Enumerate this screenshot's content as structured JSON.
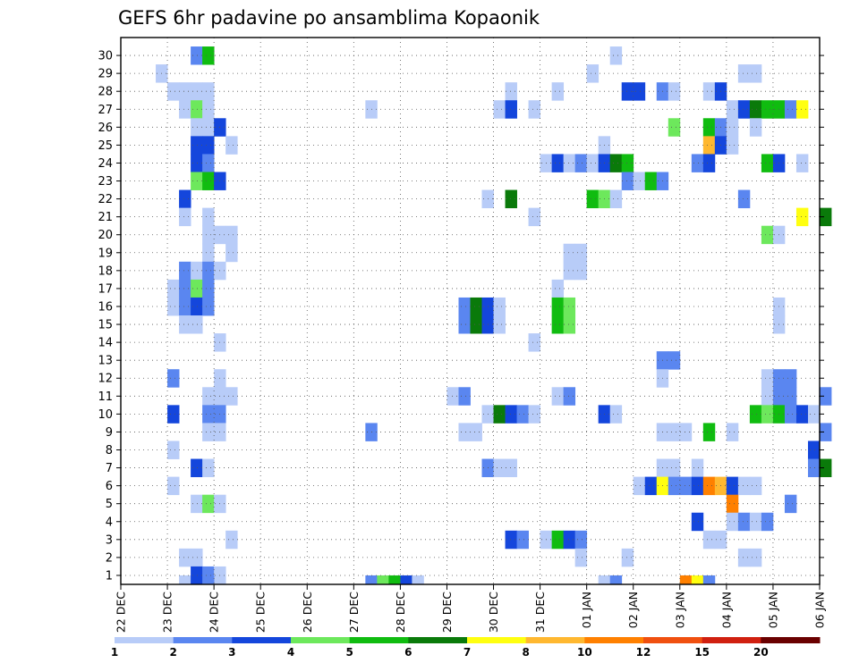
{
  "chart_data": {
    "type": "heatmap",
    "title": "GEFS 6hr padavine po ansamblima Kopaonik",
    "y_ticks": [
      "1",
      "2",
      "3",
      "4",
      "5",
      "6",
      "7",
      "8",
      "9",
      "10",
      "11",
      "12",
      "13",
      "14",
      "15",
      "16",
      "17",
      "18",
      "19",
      "20",
      "21",
      "22",
      "23",
      "24",
      "25",
      "26",
      "27",
      "28",
      "29",
      "30"
    ],
    "x_ticks": [
      "22 DEC",
      "23 DEC",
      "24 DEC",
      "25 DEC",
      "26 DEC",
      "27 DEC",
      "28 DEC",
      "29 DEC",
      "30 DEC",
      "31 DEC",
      "01 JAN",
      "02 JAN",
      "03 JAN",
      "04 JAN",
      "05 JAN",
      "06 JAN"
    ],
    "x_steps_per_day": 4,
    "legend": {
      "labels": [
        "1",
        "2",
        "3",
        "4",
        "5",
        "6",
        "7",
        "8",
        "10",
        "12",
        "15",
        "20"
      ],
      "colors": [
        "#b8ccf8",
        "#5a86f0",
        "#1446dc",
        "#6de85c",
        "#10bc10",
        "#0a7a0a",
        "#ffff10",
        "#ffb830",
        "#ff8000",
        "#f05010",
        "#d02010",
        "#6a0000"
      ]
    },
    "cells": [
      [
        30,
        6,
        1
      ],
      [
        30,
        7,
        4
      ],
      [
        30,
        42,
        0
      ],
      [
        29,
        3,
        0
      ],
      [
        29,
        40,
        0
      ],
      [
        29,
        53,
        0
      ],
      [
        29,
        54,
        0
      ],
      [
        28,
        4,
        0
      ],
      [
        28,
        5,
        0
      ],
      [
        28,
        6,
        0
      ],
      [
        28,
        7,
        0
      ],
      [
        28,
        33,
        0
      ],
      [
        28,
        37,
        0
      ],
      [
        28,
        43,
        2
      ],
      [
        28,
        44,
        2
      ],
      [
        28,
        46,
        1
      ],
      [
        28,
        47,
        0
      ],
      [
        28,
        50,
        0
      ],
      [
        28,
        51,
        2
      ],
      [
        27,
        5,
        0
      ],
      [
        27,
        6,
        3
      ],
      [
        27,
        7,
        0
      ],
      [
        27,
        21,
        0
      ],
      [
        27,
        32,
        0
      ],
      [
        27,
        33,
        2
      ],
      [
        27,
        35,
        0
      ],
      [
        27,
        52,
        0
      ],
      [
        27,
        53,
        2
      ],
      [
        27,
        54,
        5
      ],
      [
        27,
        55,
        4
      ],
      [
        27,
        56,
        4
      ],
      [
        27,
        57,
        1
      ],
      [
        27,
        58,
        6
      ],
      [
        26,
        6,
        0
      ],
      [
        26,
        7,
        0
      ],
      [
        26,
        8,
        2
      ],
      [
        26,
        47,
        3
      ],
      [
        26,
        50,
        4
      ],
      [
        26,
        51,
        1
      ],
      [
        26,
        52,
        0
      ],
      [
        26,
        54,
        0
      ],
      [
        25,
        6,
        2
      ],
      [
        25,
        7,
        2
      ],
      [
        25,
        9,
        0
      ],
      [
        25,
        41,
        0
      ],
      [
        25,
        50,
        7
      ],
      [
        25,
        51,
        2
      ],
      [
        25,
        52,
        0
      ],
      [
        24,
        6,
        2
      ],
      [
        24,
        7,
        1
      ],
      [
        24,
        36,
        0
      ],
      [
        24,
        37,
        2
      ],
      [
        24,
        38,
        0
      ],
      [
        24,
        39,
        1
      ],
      [
        24,
        40,
        0
      ],
      [
        24,
        41,
        2
      ],
      [
        24,
        42,
        5
      ],
      [
        24,
        43,
        4
      ],
      [
        24,
        49,
        1
      ],
      [
        24,
        50,
        2
      ],
      [
        24,
        55,
        4
      ],
      [
        24,
        56,
        2
      ],
      [
        24,
        58,
        0
      ],
      [
        23,
        6,
        3
      ],
      [
        23,
        7,
        4
      ],
      [
        23,
        8,
        2
      ],
      [
        23,
        43,
        1
      ],
      [
        23,
        44,
        0
      ],
      [
        23,
        45,
        4
      ],
      [
        23,
        46,
        1
      ],
      [
        22,
        5,
        2
      ],
      [
        22,
        31,
        0
      ],
      [
        22,
        33,
        5
      ],
      [
        22,
        40,
        4
      ],
      [
        22,
        41,
        3
      ],
      [
        22,
        42,
        0
      ],
      [
        22,
        53,
        1
      ],
      [
        21,
        5,
        0
      ],
      [
        21,
        7,
        0
      ],
      [
        21,
        35,
        0
      ],
      [
        21,
        58,
        6
      ],
      [
        21,
        60,
        5
      ],
      [
        20,
        7,
        0
      ],
      [
        20,
        8,
        0
      ],
      [
        20,
        9,
        0
      ],
      [
        20,
        55,
        3
      ],
      [
        20,
        56,
        0
      ],
      [
        19,
        7,
        0
      ],
      [
        19,
        9,
        0
      ],
      [
        19,
        38,
        0
      ],
      [
        19,
        39,
        0
      ],
      [
        18,
        5,
        1
      ],
      [
        18,
        6,
        0
      ],
      [
        18,
        7,
        1
      ],
      [
        18,
        8,
        0
      ],
      [
        18,
        38,
        0
      ],
      [
        18,
        39,
        0
      ],
      [
        17,
        4,
        0
      ],
      [
        17,
        5,
        1
      ],
      [
        17,
        6,
        3
      ],
      [
        17,
        7,
        1
      ],
      [
        17,
        37,
        0
      ],
      [
        16,
        4,
        0
      ],
      [
        16,
        5,
        1
      ],
      [
        16,
        6,
        2
      ],
      [
        16,
        7,
        1
      ],
      [
        16,
        29,
        1
      ],
      [
        16,
        30,
        5
      ],
      [
        16,
        31,
        2
      ],
      [
        16,
        32,
        0
      ],
      [
        16,
        37,
        4
      ],
      [
        16,
        38,
        3
      ],
      [
        16,
        56,
        0
      ],
      [
        15,
        5,
        0
      ],
      [
        15,
        6,
        0
      ],
      [
        15,
        29,
        1
      ],
      [
        15,
        30,
        5
      ],
      [
        15,
        31,
        2
      ],
      [
        15,
        32,
        0
      ],
      [
        15,
        37,
        4
      ],
      [
        15,
        38,
        3
      ],
      [
        15,
        56,
        0
      ],
      [
        14,
        8,
        0
      ],
      [
        14,
        35,
        0
      ],
      [
        13,
        46,
        1
      ],
      [
        13,
        47,
        1
      ],
      [
        12,
        4,
        1
      ],
      [
        12,
        8,
        0
      ],
      [
        12,
        46,
        0
      ],
      [
        12,
        55,
        0
      ],
      [
        12,
        56,
        1
      ],
      [
        12,
        57,
        1
      ],
      [
        11,
        7,
        0
      ],
      [
        11,
        8,
        0
      ],
      [
        11,
        9,
        0
      ],
      [
        11,
        28,
        0
      ],
      [
        11,
        29,
        1
      ],
      [
        11,
        37,
        0
      ],
      [
        11,
        38,
        1
      ],
      [
        11,
        55,
        0
      ],
      [
        11,
        56,
        1
      ],
      [
        11,
        57,
        1
      ],
      [
        11,
        60,
        1
      ],
      [
        10,
        4,
        2
      ],
      [
        10,
        7,
        1
      ],
      [
        10,
        8,
        1
      ],
      [
        10,
        31,
        0
      ],
      [
        10,
        32,
        5
      ],
      [
        10,
        33,
        2
      ],
      [
        10,
        34,
        1
      ],
      [
        10,
        35,
        0
      ],
      [
        10,
        41,
        2
      ],
      [
        10,
        42,
        0
      ],
      [
        10,
        54,
        4
      ],
      [
        10,
        55,
        3
      ],
      [
        10,
        56,
        4
      ],
      [
        10,
        57,
        1
      ],
      [
        10,
        58,
        2
      ],
      [
        10,
        59,
        0
      ],
      [
        9,
        7,
        0
      ],
      [
        9,
        8,
        0
      ],
      [
        9,
        21,
        1
      ],
      [
        9,
        29,
        0
      ],
      [
        9,
        30,
        0
      ],
      [
        9,
        46,
        0
      ],
      [
        9,
        47,
        0
      ],
      [
        9,
        48,
        0
      ],
      [
        9,
        50,
        4
      ],
      [
        9,
        52,
        0
      ],
      [
        9,
        60,
        1
      ],
      [
        8,
        4,
        0
      ],
      [
        8,
        59,
        2
      ],
      [
        7,
        6,
        2
      ],
      [
        7,
        7,
        0
      ],
      [
        7,
        31,
        1
      ],
      [
        7,
        32,
        0
      ],
      [
        7,
        33,
        0
      ],
      [
        7,
        46,
        0
      ],
      [
        7,
        47,
        0
      ],
      [
        7,
        49,
        0
      ],
      [
        7,
        59,
        1
      ],
      [
        7,
        60,
        5
      ],
      [
        6,
        4,
        0
      ],
      [
        6,
        44,
        0
      ],
      [
        6,
        45,
        2
      ],
      [
        6,
        46,
        6
      ],
      [
        6,
        47,
        1
      ],
      [
        6,
        48,
        1
      ],
      [
        6,
        49,
        2
      ],
      [
        6,
        50,
        8
      ],
      [
        6,
        51,
        7
      ],
      [
        6,
        52,
        2
      ],
      [
        6,
        53,
        0
      ],
      [
        6,
        54,
        0
      ],
      [
        5,
        6,
        0
      ],
      [
        5,
        7,
        3
      ],
      [
        5,
        8,
        0
      ],
      [
        5,
        52,
        8
      ],
      [
        5,
        57,
        1
      ],
      [
        4,
        49,
        2
      ],
      [
        4,
        52,
        0
      ],
      [
        4,
        53,
        1
      ],
      [
        4,
        54,
        0
      ],
      [
        4,
        55,
        1
      ],
      [
        3,
        9,
        0
      ],
      [
        3,
        33,
        2
      ],
      [
        3,
        34,
        1
      ],
      [
        3,
        36,
        0
      ],
      [
        3,
        37,
        4
      ],
      [
        3,
        38,
        2
      ],
      [
        3,
        39,
        1
      ],
      [
        3,
        50,
        0
      ],
      [
        3,
        51,
        0
      ],
      [
        2,
        5,
        0
      ],
      [
        2,
        6,
        0
      ],
      [
        2,
        39,
        0
      ],
      [
        2,
        43,
        0
      ],
      [
        2,
        53,
        0
      ],
      [
        2,
        54,
        0
      ],
      [
        1,
        6,
        2
      ],
      [
        1,
        7,
        1
      ],
      [
        1,
        8,
        0
      ],
      [
        0,
        5,
        0
      ],
      [
        0,
        6,
        2
      ],
      [
        0,
        7,
        1
      ],
      [
        0,
        21,
        1
      ],
      [
        0,
        22,
        3
      ],
      [
        0,
        23,
        4
      ],
      [
        0,
        24,
        2
      ],
      [
        0,
        25,
        0
      ],
      [
        0,
        41,
        0
      ],
      [
        0,
        42,
        1
      ],
      [
        0,
        48,
        8
      ],
      [
        0,
        49,
        6
      ],
      [
        0,
        50,
        1
      ]
    ]
  }
}
